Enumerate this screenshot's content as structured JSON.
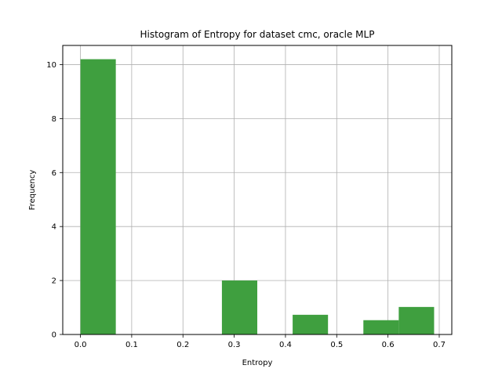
{
  "chart_data": {
    "type": "bar",
    "title": "Histogram of Entropy for dataset cmc, oracle MLP",
    "xlabel": "Entropy",
    "ylabel": "Frequency",
    "xlim": [
      -0.0345,
      0.7245
    ],
    "ylim": [
      0,
      10.71
    ],
    "xticks": [
      0.0,
      0.1,
      0.2,
      0.3,
      0.4,
      0.5,
      0.6,
      0.7
    ],
    "xtick_labels": [
      "0.0",
      "0.1",
      "0.2",
      "0.3",
      "0.4",
      "0.5",
      "0.6",
      "0.7"
    ],
    "yticks": [
      0,
      2,
      4,
      6,
      8,
      10
    ],
    "ytick_labels": [
      "0",
      "2",
      "4",
      "6",
      "8",
      "10"
    ],
    "grid": true,
    "bar_color": "#3f9f3f",
    "bins": [
      {
        "x0": 0.0,
        "x1": 0.069,
        "value": 10.2
      },
      {
        "x0": 0.069,
        "x1": 0.138,
        "value": 0
      },
      {
        "x0": 0.138,
        "x1": 0.207,
        "value": 0
      },
      {
        "x0": 0.207,
        "x1": 0.276,
        "value": 0
      },
      {
        "x0": 0.276,
        "x1": 0.345,
        "value": 2.0
      },
      {
        "x0": 0.345,
        "x1": 0.414,
        "value": 0
      },
      {
        "x0": 0.414,
        "x1": 0.483,
        "value": 0.73
      },
      {
        "x0": 0.483,
        "x1": 0.552,
        "value": 0
      },
      {
        "x0": 0.552,
        "x1": 0.621,
        "value": 0.53
      },
      {
        "x0": 0.621,
        "x1": 0.69,
        "value": 1.02
      }
    ]
  }
}
